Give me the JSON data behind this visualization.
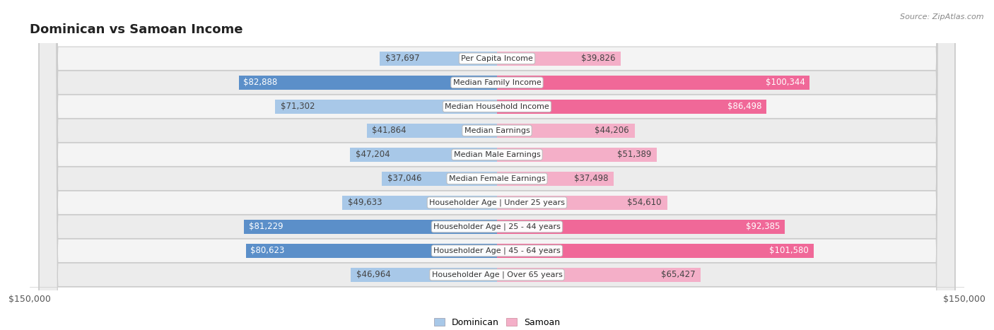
{
  "title": "Dominican vs Samoan Income",
  "source": "Source: ZipAtlas.com",
  "categories": [
    "Per Capita Income",
    "Median Family Income",
    "Median Household Income",
    "Median Earnings",
    "Median Male Earnings",
    "Median Female Earnings",
    "Householder Age | Under 25 years",
    "Householder Age | 25 - 44 years",
    "Householder Age | 45 - 64 years",
    "Householder Age | Over 65 years"
  ],
  "dominican_values": [
    37697,
    82888,
    71302,
    41864,
    47204,
    37046,
    49633,
    81229,
    80623,
    46964
  ],
  "samoan_values": [
    39826,
    100344,
    86498,
    44206,
    51389,
    37498,
    54610,
    92385,
    101580,
    65427
  ],
  "dominican_labels": [
    "$37,697",
    "$82,888",
    "$71,302",
    "$41,864",
    "$47,204",
    "$37,046",
    "$49,633",
    "$81,229",
    "$80,623",
    "$46,964"
  ],
  "samoan_labels": [
    "$39,826",
    "$100,344",
    "$86,498",
    "$44,206",
    "$51,389",
    "$37,498",
    "$54,610",
    "$92,385",
    "$101,580",
    "$65,427"
  ],
  "dominican_color_light": "#a8c8e8",
  "dominican_color_dark": "#5b8fc9",
  "samoan_color_light": "#f4afc8",
  "samoan_color_dark": "#f06898",
  "max_value": 150000,
  "bar_height": 0.58,
  "title_fontsize": 13,
  "label_fontsize": 8.5,
  "category_fontsize": 8.0,
  "axis_label": "$150,000",
  "legend_dominican": "Dominican",
  "legend_samoan": "Samoan",
  "high_value_threshold": 80000,
  "row_bg_even": "#f4f4f4",
  "row_bg_odd": "#ececec"
}
